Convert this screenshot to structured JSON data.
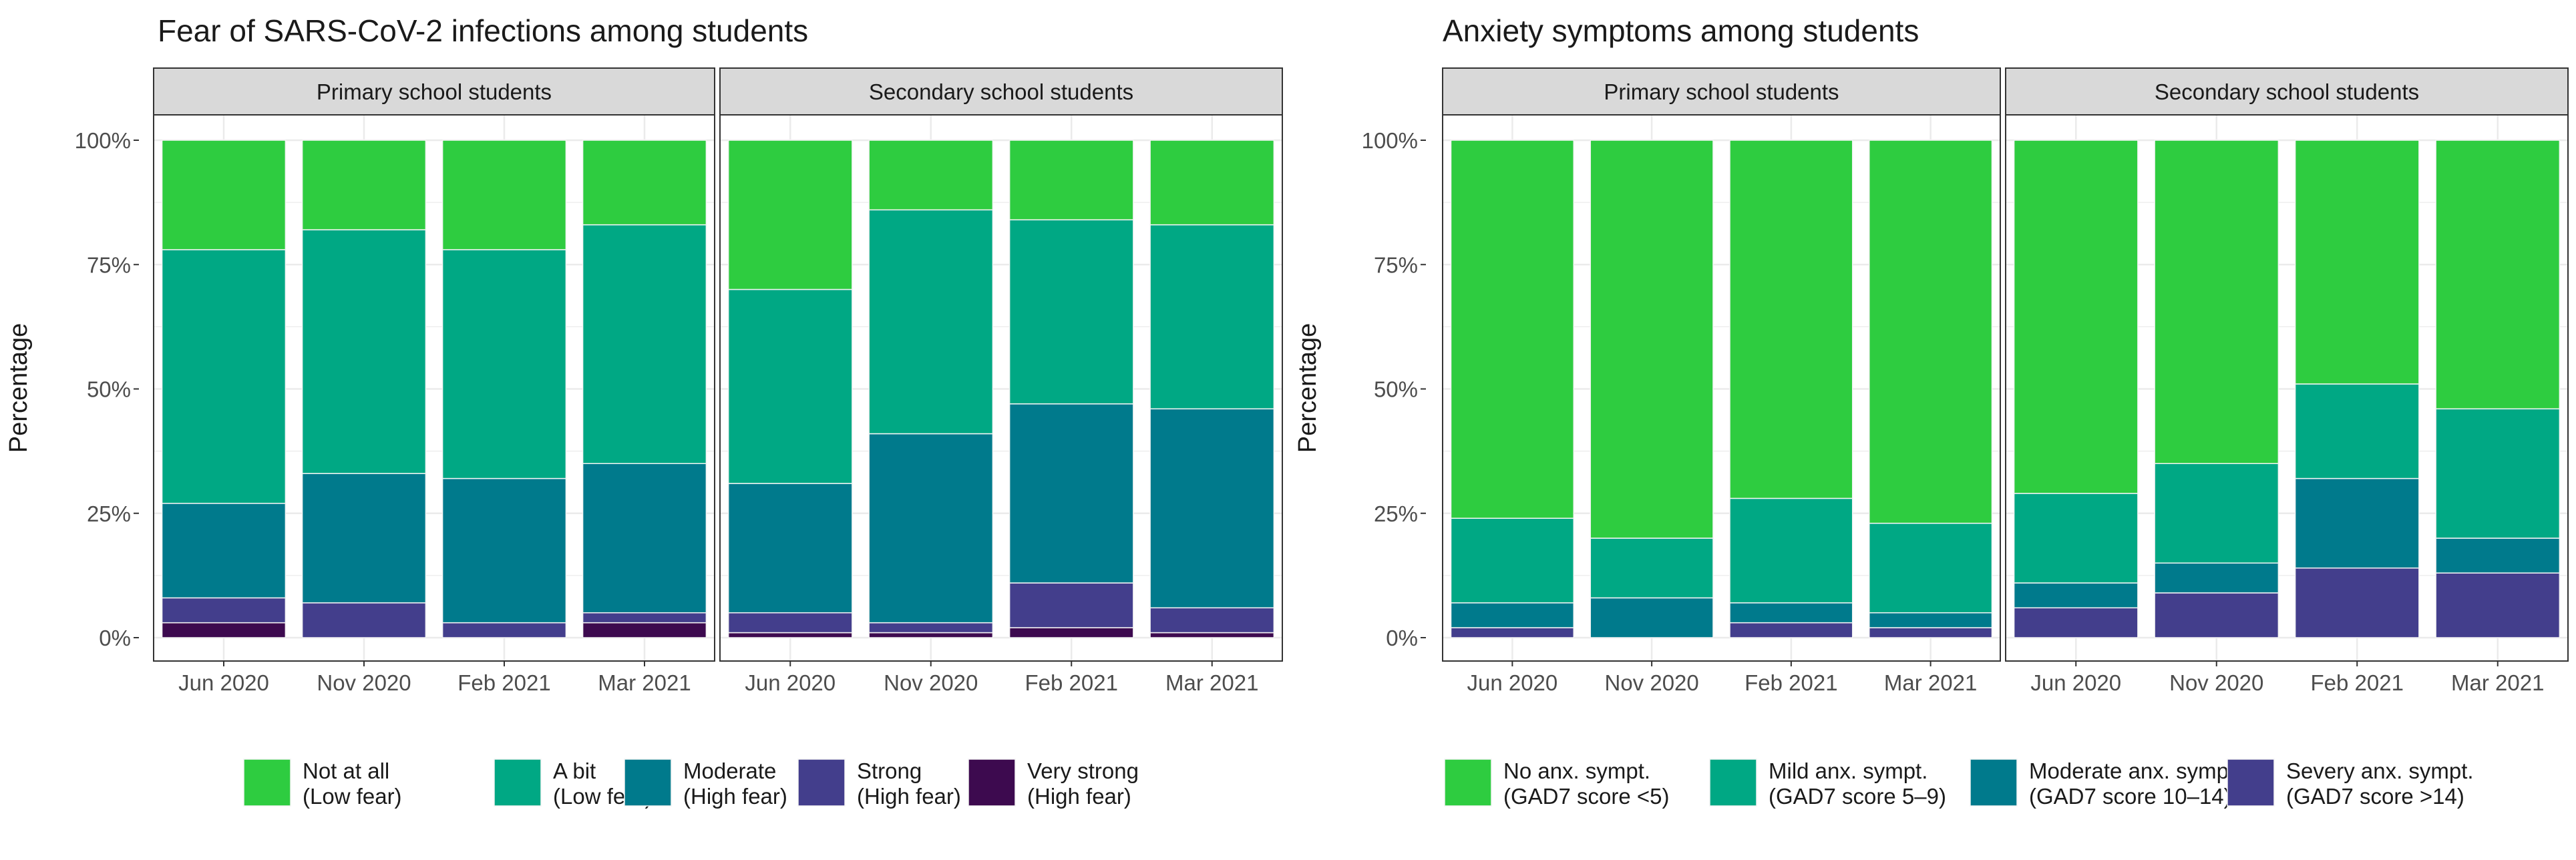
{
  "chart_data": [
    {
      "type": "bar",
      "title": "Fear of SARS-CoV-2 infections among students",
      "ylabel": "Percentage",
      "ylim": [
        0,
        100
      ],
      "yticks": [
        "0%",
        "25%",
        "50%",
        "75%",
        "100%"
      ],
      "categories": [
        "Jun 2020",
        "Nov 2020",
        "Feb 2021",
        "Mar 2021"
      ],
      "legend": [
        {
          "line1": "Not at all",
          "line2": "(Low fear)",
          "color": "#2ecc40"
        },
        {
          "line1": "A bit",
          "line2": "(Low fear)",
          "color": "#00a884"
        },
        {
          "line1": "Moderate",
          "line2": "(High fear)",
          "color": "#007a8c"
        },
        {
          "line1": "Strong",
          "line2": "(High fear)",
          "color": "#433e8c"
        },
        {
          "line1": "Very strong",
          "line2": "(High fear)",
          "color": "#3d0a4f"
        }
      ],
      "facets": [
        {
          "label": "Primary school students",
          "series": [
            {
              "name": "Not at all (Low fear)",
              "values": [
                22,
                18,
                22,
                17
              ]
            },
            {
              "name": "A bit (Low fear)",
              "values": [
                51,
                49,
                46,
                48
              ]
            },
            {
              "name": "Moderate (High fear)",
              "values": [
                19,
                26,
                29,
                30
              ]
            },
            {
              "name": "Strong (High fear)",
              "values": [
                5,
                7,
                3,
                2
              ]
            },
            {
              "name": "Very strong (High fear)",
              "values": [
                3,
                0,
                0,
                3
              ]
            }
          ]
        },
        {
          "label": "Secondary school students",
          "series": [
            {
              "name": "Not at all (Low fear)",
              "values": [
                30,
                14,
                16,
                17
              ]
            },
            {
              "name": "A bit (Low fear)",
              "values": [
                39,
                45,
                37,
                37
              ]
            },
            {
              "name": "Moderate (High fear)",
              "values": [
                26,
                38,
                36,
                40
              ]
            },
            {
              "name": "Strong (High fear)",
              "values": [
                4,
                2,
                9,
                5
              ]
            },
            {
              "name": "Very strong (High fear)",
              "values": [
                1,
                1,
                2,
                1
              ]
            }
          ]
        }
      ]
    },
    {
      "type": "bar",
      "title": "Anxiety symptoms among students",
      "ylabel": "Percentage",
      "ylim": [
        0,
        100
      ],
      "yticks": [
        "0%",
        "25%",
        "50%",
        "75%",
        "100%"
      ],
      "categories": [
        "Jun 2020",
        "Nov 2020",
        "Feb 2021",
        "Mar 2021"
      ],
      "legend": [
        {
          "line1": "No anx. sympt.",
          "line2": "(GAD7 score <5)",
          "color": "#2ecc40"
        },
        {
          "line1": "Mild anx. sympt.",
          "line2": "(GAD7 score 5–9)",
          "color": "#00a884"
        },
        {
          "line1": "Moderate anx. sympt.",
          "line2": "(GAD7 score 10–14)",
          "color": "#007a8c"
        },
        {
          "line1": "Severy anx. sympt.",
          "line2": "(GAD7 score >14)",
          "color": "#433e8c"
        }
      ],
      "facets": [
        {
          "label": "Primary school students",
          "series": [
            {
              "name": "No anx. sympt. (GAD7 score <5)",
              "values": [
                76,
                80,
                72,
                77
              ]
            },
            {
              "name": "Mild anx. sympt. (GAD7 score 5–9)",
              "values": [
                17,
                12,
                21,
                18
              ]
            },
            {
              "name": "Moderate anx. sympt. (GAD7 score 10–14)",
              "values": [
                5,
                8,
                4,
                3
              ]
            },
            {
              "name": "Severy anx. sympt. (GAD7 score >14)",
              "values": [
                2,
                0,
                3,
                2
              ]
            }
          ]
        },
        {
          "label": "Secondary school students",
          "series": [
            {
              "name": "No anx. sympt. (GAD7 score <5)",
              "values": [
                71,
                65,
                49,
                54
              ]
            },
            {
              "name": "Mild anx. sympt. (GAD7 score 5–9)",
              "values": [
                18,
                20,
                19,
                26
              ]
            },
            {
              "name": "Moderate anx. sympt. (GAD7 score 10–14)",
              "values": [
                5,
                6,
                18,
                7
              ]
            },
            {
              "name": "Severy anx. sympt. (GAD7 score >14)",
              "values": [
                6,
                9,
                14,
                13
              ]
            }
          ]
        }
      ]
    }
  ]
}
